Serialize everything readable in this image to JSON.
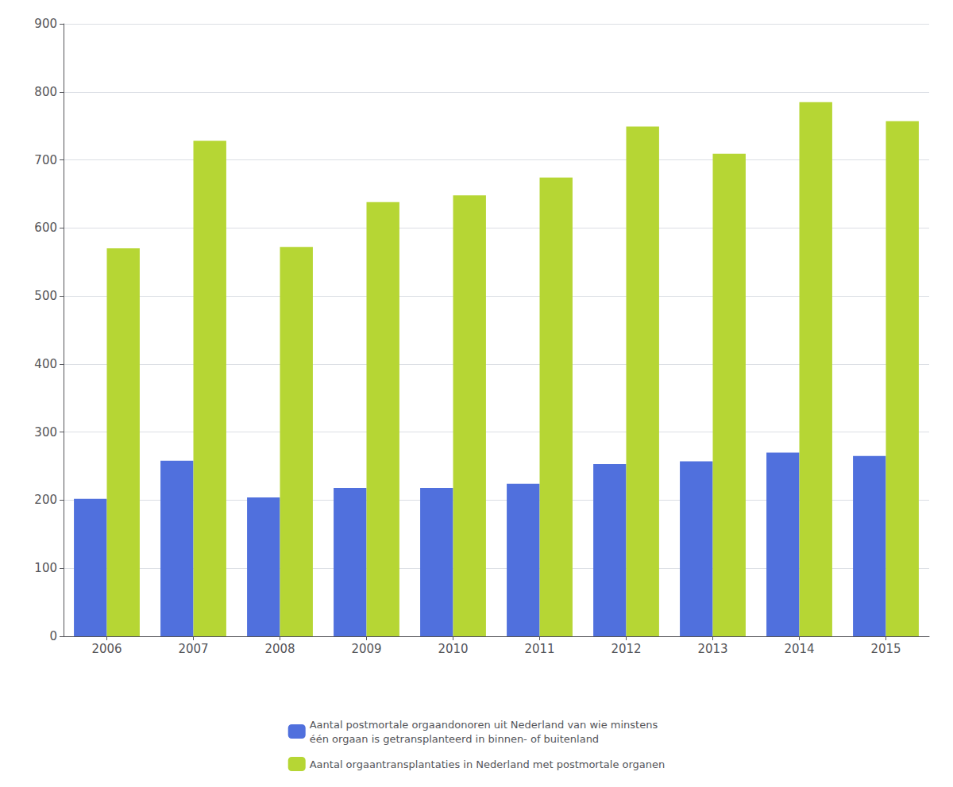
{
  "chart_data": {
    "type": "bar",
    "categories": [
      "2006",
      "2007",
      "2008",
      "2009",
      "2010",
      "2011",
      "2012",
      "2013",
      "2014",
      "2015"
    ],
    "series": [
      {
        "name": "Aantal postmortale orgaandonoren uit Nederland van wie minstens\néén orgaan is getransplanteerd in binnen- of buitenland",
        "values": [
          202,
          258,
          204,
          218,
          218,
          224,
          253,
          257,
          270,
          265
        ]
      },
      {
        "name": "Aantal orgaantransplantaties in Nederland met postmortale organen",
        "values": [
          570,
          728,
          572,
          638,
          648,
          674,
          749,
          709,
          785,
          757
        ]
      }
    ],
    "ylim": [
      0,
      900
    ],
    "yticks": [
      0,
      100,
      200,
      300,
      400,
      500,
      600,
      700,
      800,
      900
    ],
    "grid": true,
    "legend": "bottom"
  }
}
